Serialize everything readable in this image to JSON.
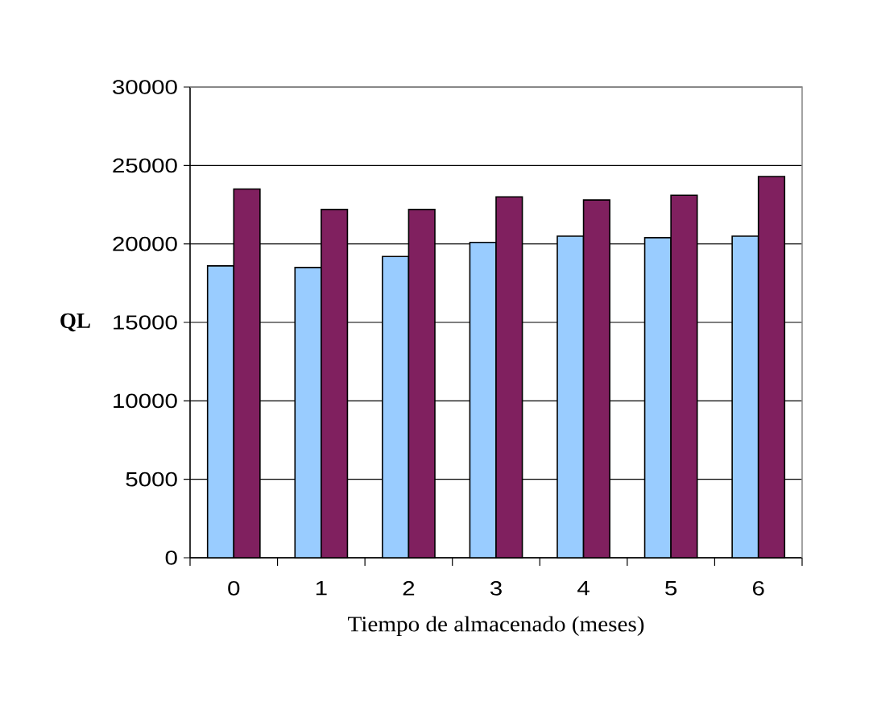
{
  "chart_data": {
    "type": "bar",
    "xlabel": "Tiempo de almacenado (meses)",
    "ylabel": "QL",
    "categories": [
      "0",
      "1",
      "2",
      "3",
      "4",
      "5",
      "6"
    ],
    "series": [
      {
        "color": "#99ccff",
        "values": [
          18600,
          18500,
          19200,
          20100,
          20500,
          20400,
          20500
        ]
      },
      {
        "color": "#80205f",
        "values": [
          23500,
          22200,
          22200,
          23000,
          22800,
          23100,
          24300
        ]
      }
    ],
    "ylim": [
      0,
      30000
    ],
    "yticks": [
      0,
      5000,
      10000,
      15000,
      20000,
      25000,
      30000
    ],
    "grid": "y"
  }
}
